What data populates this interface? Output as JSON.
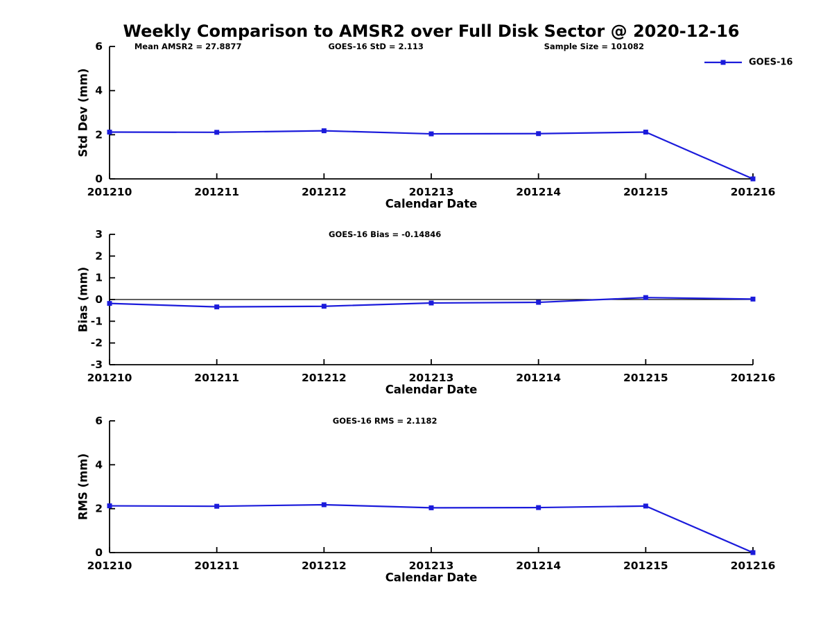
{
  "page": {
    "title": "Weekly Comparison to AMSR2 over Full Disk Sector @ 2020-12-16",
    "background": "#ffffff",
    "accent_color": "#1b1bdb"
  },
  "legend": {
    "label": "GOES-16",
    "position": "top-right"
  },
  "chart_data": [
    {
      "id": "std-dev",
      "type": "line",
      "annotations": [
        "Mean AMSR2 = 27.8877",
        "GOES-16 StD = 2.113",
        "Sample Size = 101082"
      ],
      "ylabel": "Std Dev (mm)",
      "xlabel": "Calendar Date",
      "categories": [
        "201210",
        "201211",
        "201212",
        "201213",
        "201214",
        "201215",
        "201216"
      ],
      "series": [
        {
          "name": "GOES-16",
          "color": "#1b1bdb",
          "marker": "square",
          "values": [
            2.12,
            2.11,
            2.18,
            2.04,
            2.05,
            2.12,
            0.0
          ]
        }
      ],
      "ylim": [
        0,
        6
      ],
      "yticks": [
        0,
        2,
        4,
        6
      ],
      "grid": false,
      "zero_line": false,
      "legend_visible": true
    },
    {
      "id": "bias",
      "type": "line",
      "annotations": [
        "GOES-16 Bias  = -0.14846"
      ],
      "ylabel": "Bias (mm)",
      "xlabel": "Calendar Date",
      "categories": [
        "201210",
        "201211",
        "201212",
        "201213",
        "201214",
        "201215",
        "201216"
      ],
      "series": [
        {
          "name": "GOES-16",
          "color": "#1b1bdb",
          "marker": "square",
          "values": [
            -0.18,
            -0.34,
            -0.31,
            -0.16,
            -0.13,
            0.09,
            0.02
          ]
        }
      ],
      "ylim": [
        -3,
        3
      ],
      "yticks": [
        -3,
        -2,
        -1,
        0,
        1,
        2,
        3
      ],
      "grid": false,
      "zero_line": true,
      "legend_visible": false
    },
    {
      "id": "rms",
      "type": "line",
      "annotations": [
        "GOES-16 RMS = 2.1182"
      ],
      "ylabel": "RMS (mm)",
      "xlabel": "Calendar Date",
      "categories": [
        "201210",
        "201211",
        "201212",
        "201213",
        "201214",
        "201215",
        "201216"
      ],
      "series": [
        {
          "name": "GOES-16",
          "color": "#1b1bdb",
          "marker": "square",
          "values": [
            2.13,
            2.11,
            2.18,
            2.04,
            2.05,
            2.12,
            0.0
          ]
        }
      ],
      "ylim": [
        0,
        6
      ],
      "yticks": [
        0,
        2,
        4,
        6
      ],
      "grid": false,
      "zero_line": false,
      "legend_visible": false
    }
  ]
}
